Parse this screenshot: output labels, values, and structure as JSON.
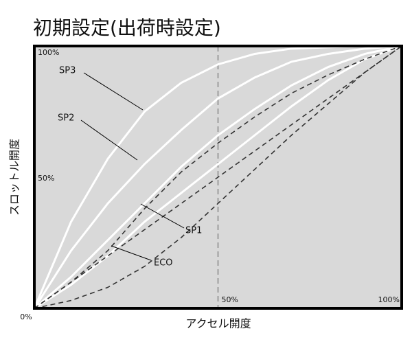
{
  "chart_data": {
    "type": "line",
    "title": "初期設定(出荷時設定)",
    "xlabel": "アクセル開度",
    "ylabel": "スロットル開度",
    "x": [
      0,
      10,
      20,
      30,
      40,
      50,
      60,
      70,
      80,
      90,
      100
    ],
    "series": [
      {
        "name": "SP3",
        "color": "#ffffff",
        "dashed": false,
        "values": [
          0,
          33,
          57,
          75,
          86,
          93,
          97,
          99,
          99.5,
          100,
          100
        ]
      },
      {
        "name": "SP2",
        "color": "#ffffff",
        "dashed": false,
        "values": [
          0,
          22,
          40,
          55,
          68,
          80,
          88,
          94,
          97,
          99,
          100
        ]
      },
      {
        "name": "SP1",
        "color": "#ffffff",
        "dashed": false,
        "values": [
          0,
          12,
          26,
          40,
          54,
          66,
          76,
          85,
          92,
          97,
          100
        ]
      },
      {
        "name": "ECO",
        "color": "#ffffff",
        "dashed": false,
        "values": [
          0,
          9,
          20,
          33,
          44,
          55,
          66,
          77,
          87,
          95,
          100
        ]
      },
      {
        "color": "#333333",
        "dashed": true,
        "values": [
          0,
          10,
          20,
          30,
          40,
          50,
          60,
          70,
          80,
          90,
          100
        ]
      },
      {
        "color": "#333333",
        "dashed": true,
        "values": [
          0,
          10,
          22,
          38,
          52,
          63,
          73,
          82,
          89,
          95,
          100
        ]
      },
      {
        "color": "#333333",
        "dashed": true,
        "values": [
          0,
          3,
          8,
          16,
          27,
          40,
          53,
          66,
          78,
          90,
          100
        ]
      }
    ],
    "xlim": [
      0,
      100
    ],
    "ylim": [
      0,
      100
    ],
    "xticks": [
      {
        "value": 0,
        "label": "0%"
      },
      {
        "value": 50,
        "label": "50%"
      },
      {
        "value": 100,
        "label": "100%"
      }
    ],
    "yticks": [
      {
        "value": 50,
        "label": "50%"
      },
      {
        "value": 100,
        "label": "100%"
      }
    ],
    "background": "#d9d9d9"
  }
}
